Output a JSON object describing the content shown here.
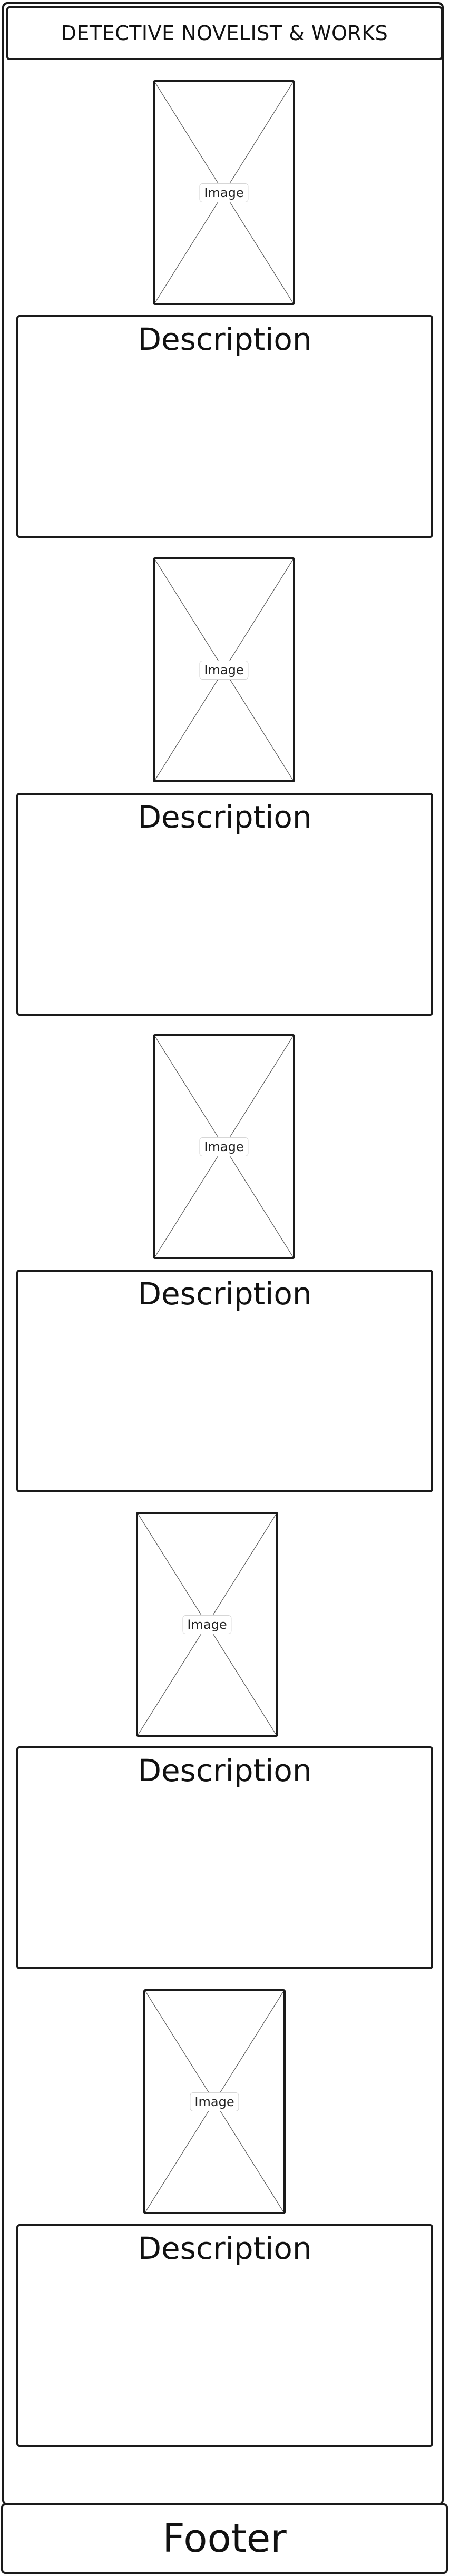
{
  "header": {
    "title": "DETECTIVE NOVELIST & WORKS"
  },
  "sections": [
    {
      "image_label": "Image",
      "description_title": "Description"
    },
    {
      "image_label": "Image",
      "description_title": "Description"
    },
    {
      "image_label": "Image",
      "description_title": "Description"
    },
    {
      "image_label": "Image",
      "description_title": "Description"
    },
    {
      "image_label": "Image",
      "description_title": "Description"
    }
  ],
  "footer": {
    "text": "Footer"
  }
}
